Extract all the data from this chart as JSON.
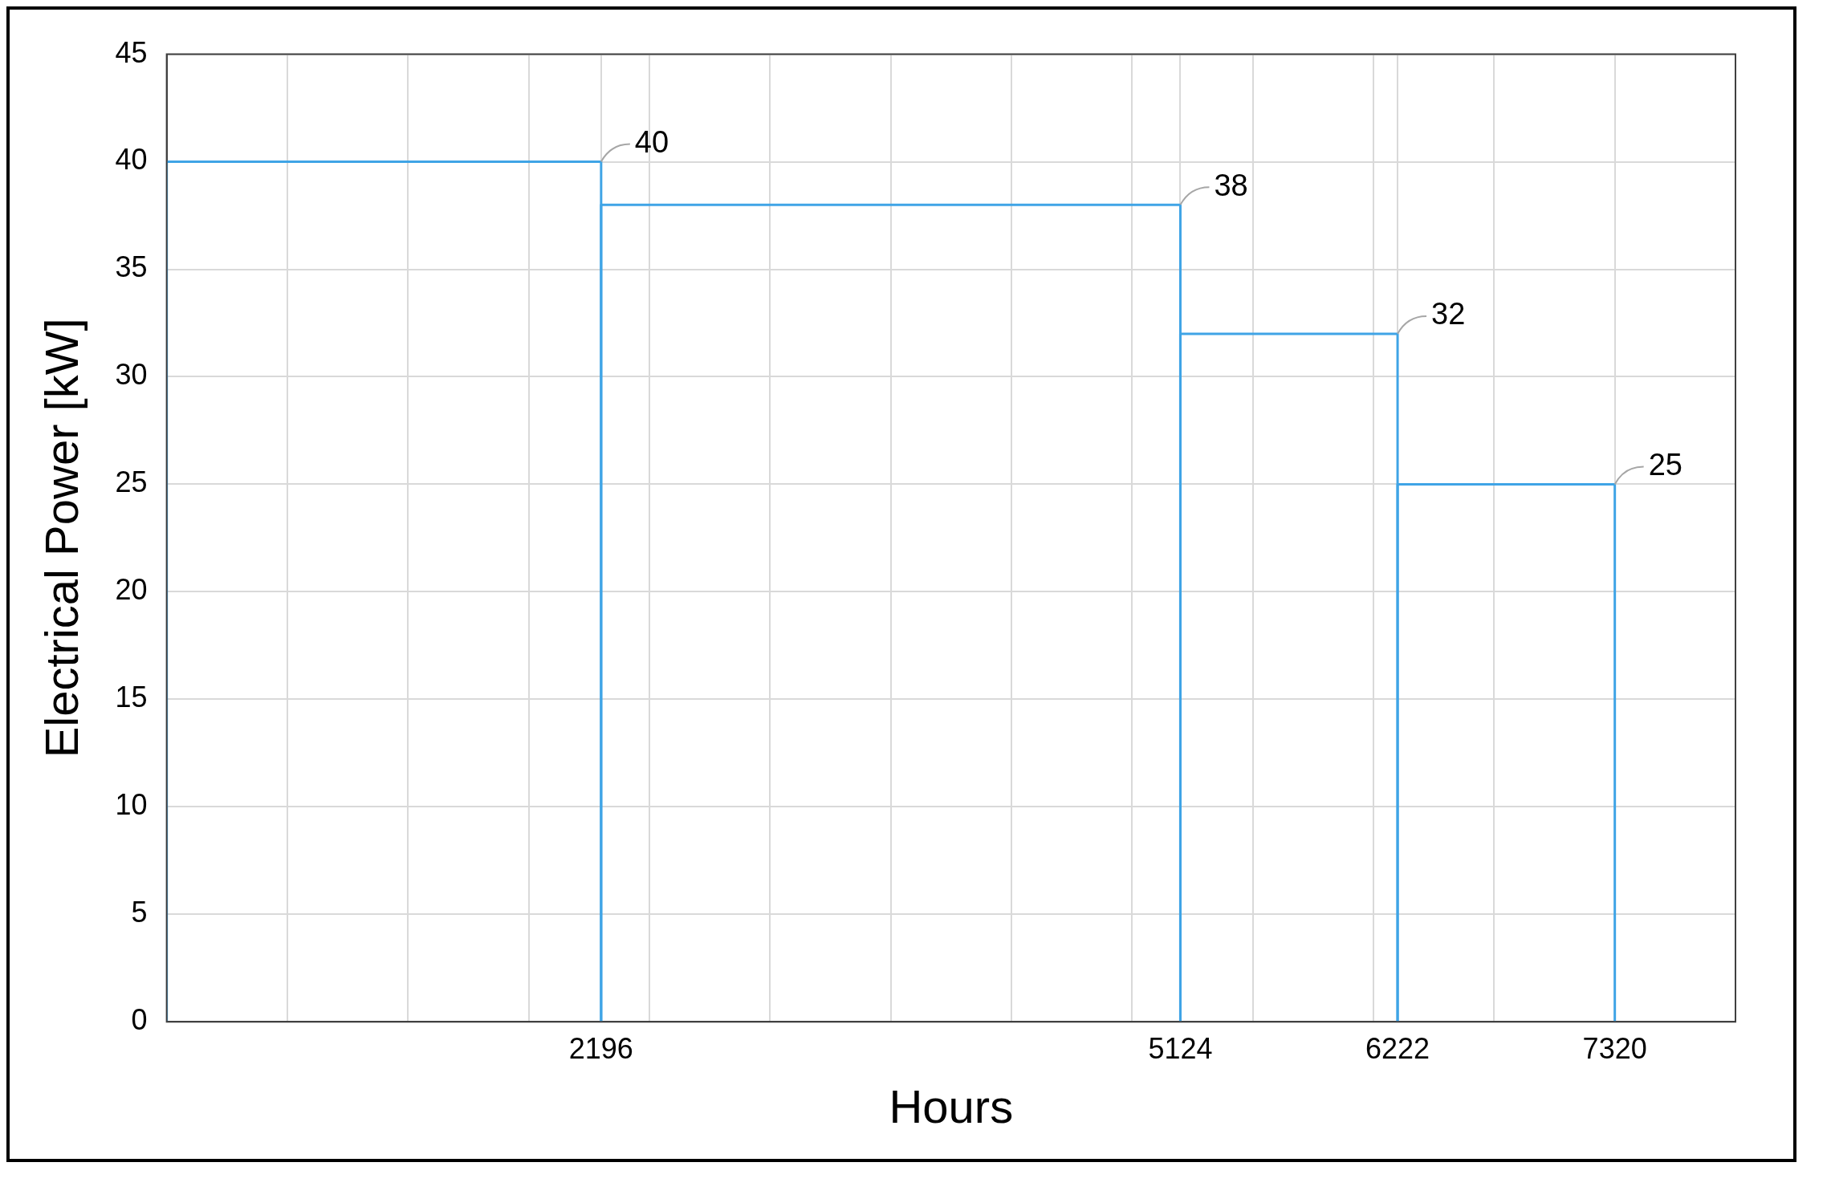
{
  "chart_data": {
    "type": "histogram",
    "xlabel": "Hours",
    "ylabel": "Electrical Power [kW]",
    "bins": [
      0,
      2196,
      5124,
      6222,
      7320
    ],
    "values": [
      40,
      38,
      32,
      25
    ],
    "color": "#3fa4e6",
    "data_labels": true,
    "xlim": [
      0,
      7930
    ],
    "xticks": [
      {
        "value": 610,
        "label": null
      },
      {
        "value": 1220,
        "label": null
      },
      {
        "value": 1830,
        "label": null
      },
      2196,
      {
        "value": 2440,
        "label": null
      },
      {
        "value": 3050,
        "label": null
      },
      {
        "value": 3660,
        "label": null
      },
      {
        "value": 4270,
        "label": null
      },
      {
        "value": 4880,
        "label": null
      },
      5124,
      {
        "value": 5490,
        "label": null
      },
      {
        "value": 6100,
        "label": null
      },
      6222,
      {
        "value": 6710,
        "label": null
      },
      7320
    ],
    "ylim": [
      0,
      45
    ],
    "yticks": [
      0,
      5,
      10,
      15,
      20,
      25,
      30,
      35,
      40,
      45
    ],
    "grid": true,
    "legend": false
  }
}
